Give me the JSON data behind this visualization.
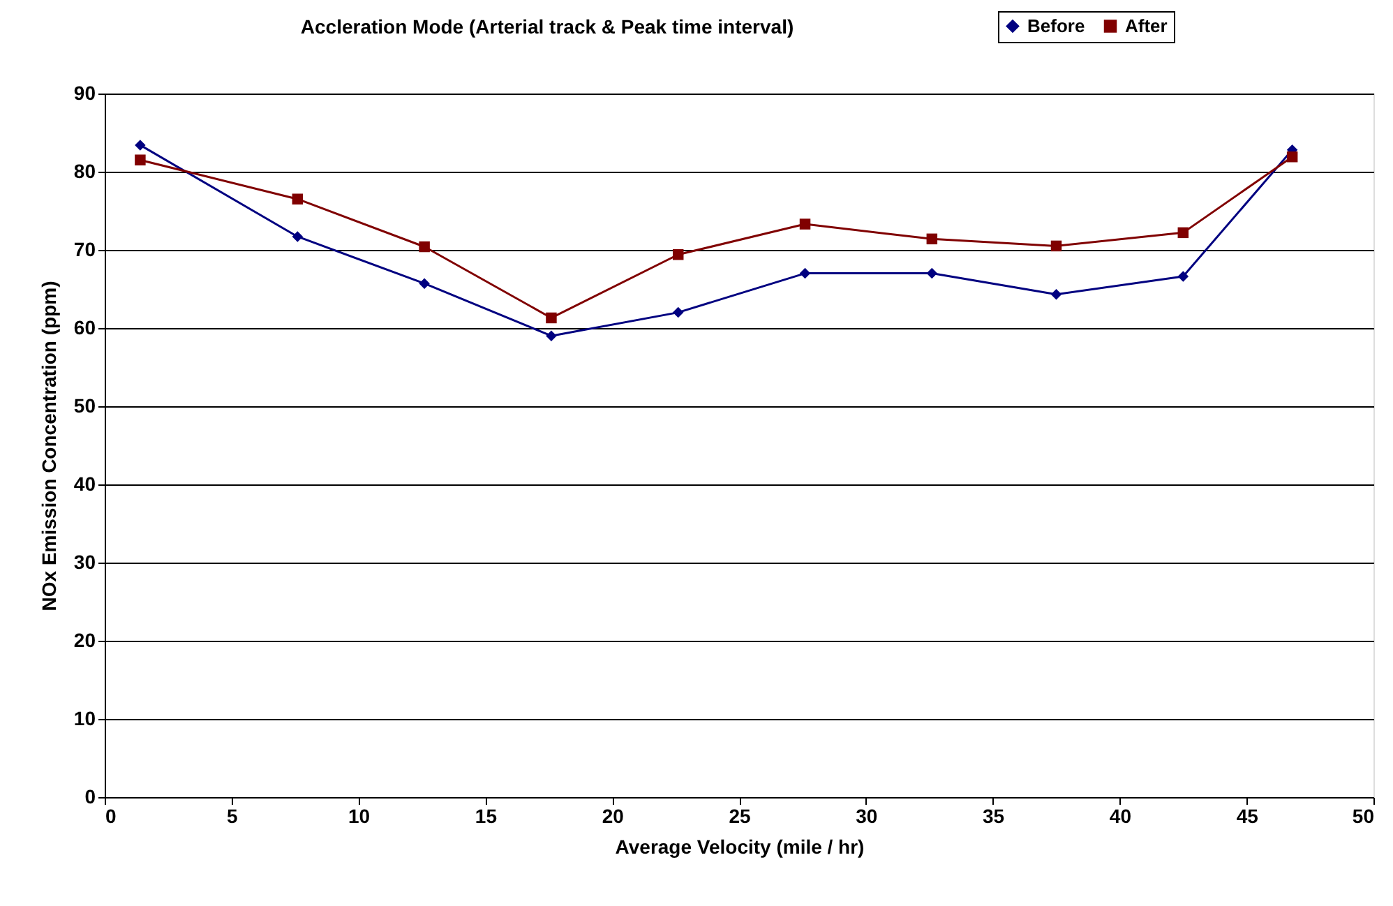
{
  "chart_data": {
    "type": "line",
    "title": "Accleration Mode (Arterial track & Peak time interval)",
    "xlabel": "Average Velocity (mile / hr)",
    "ylabel": "NOx Emission Concentration (ppm)",
    "x": [
      1.4,
      7.6,
      12.6,
      17.6,
      22.6,
      27.6,
      32.6,
      37.5,
      42.5,
      46.8
    ],
    "series": [
      {
        "name": "Before",
        "color": "#000080",
        "marker": "diamond",
        "values": [
          83.4,
          71.7,
          65.7,
          59.0,
          62.0,
          67.0,
          67.0,
          64.3,
          66.6,
          82.8
        ]
      },
      {
        "name": "After",
        "color": "#800000",
        "marker": "square",
        "values": [
          81.5,
          76.5,
          70.4,
          61.3,
          69.4,
          73.3,
          71.4,
          70.5,
          72.2,
          81.9
        ]
      }
    ],
    "xlim": [
      0,
      50
    ],
    "xticks": [
      0,
      5,
      10,
      15,
      20,
      25,
      30,
      35,
      40,
      45,
      50
    ],
    "ylim": [
      0,
      90
    ],
    "yticks": [
      0,
      10,
      20,
      30,
      40,
      50,
      60,
      70,
      80,
      90
    ],
    "grid": "y",
    "legend": "top right",
    "line_style": "solid"
  }
}
